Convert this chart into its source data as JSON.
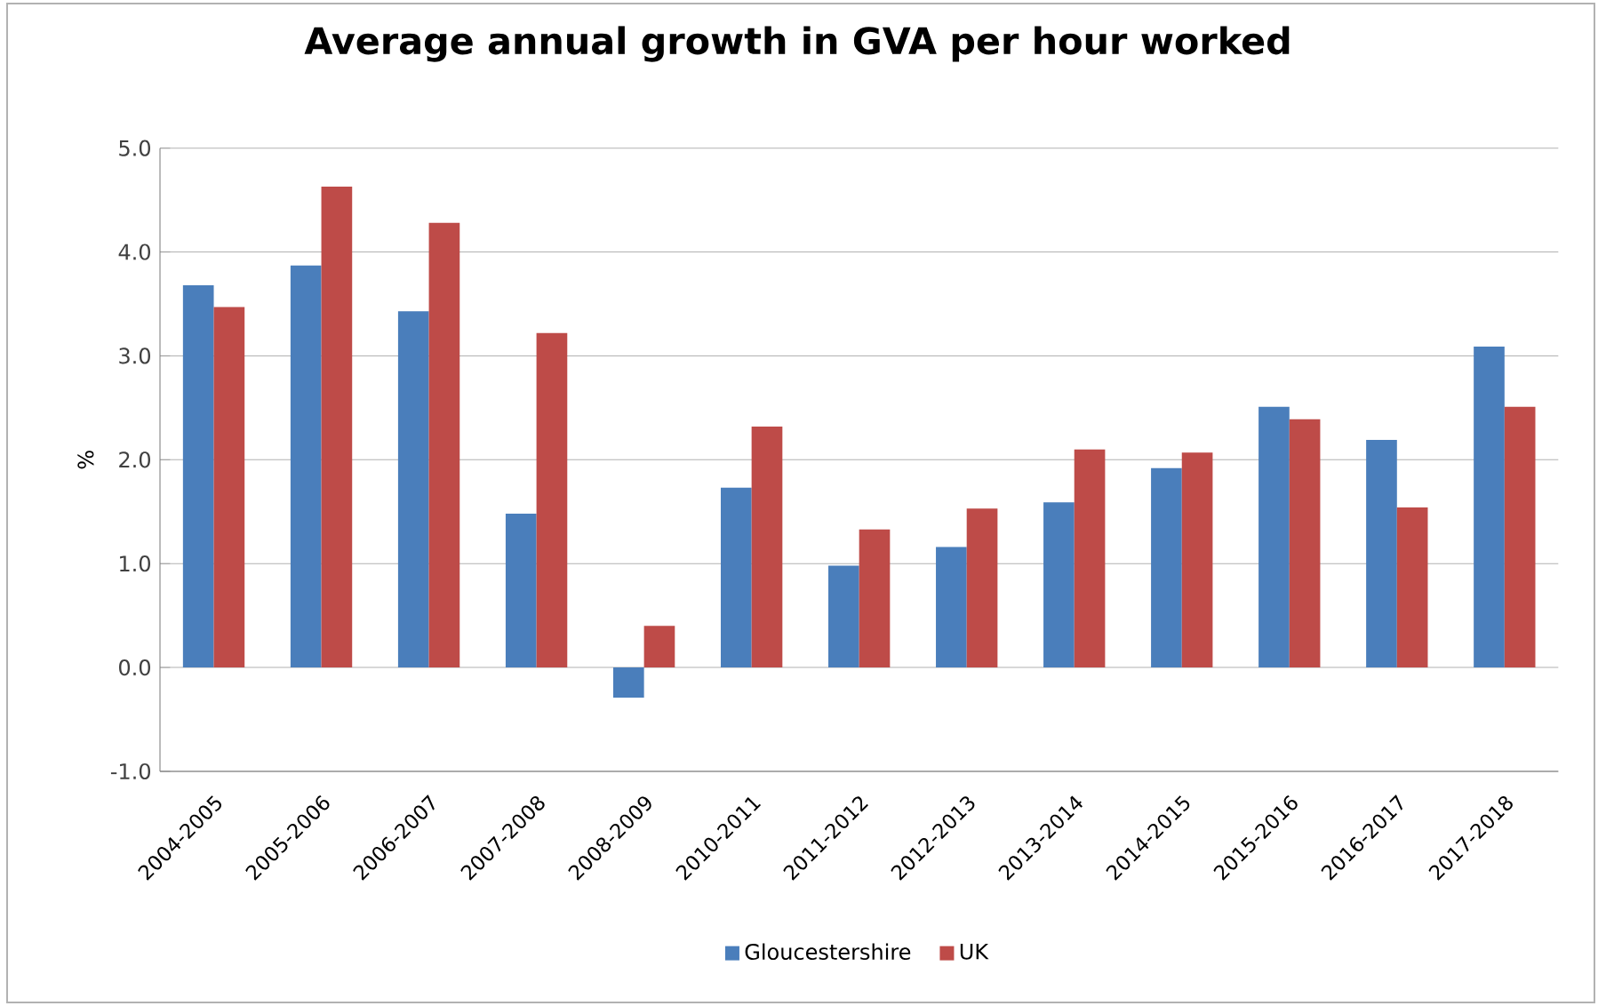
{
  "chart_data": {
    "type": "bar",
    "title": "Average annual growth in GVA per hour worked",
    "ylabel": "%",
    "categories": [
      "2004-2005",
      "2005-2006",
      "2006-2007",
      "2007-2008",
      "2008-2009",
      "2010-2011",
      "2011-2012",
      "2012-2013",
      "2013-2014",
      "2014-2015",
      "2015-2016",
      "2016-2017",
      "2017-2018"
    ],
    "series": [
      {
        "name": "Gloucestershire",
        "color": "#4a7ebb",
        "values": [
          3.68,
          3.87,
          3.43,
          1.48,
          -0.29,
          1.73,
          0.98,
          1.16,
          1.59,
          1.92,
          2.51,
          2.19,
          3.09
        ]
      },
      {
        "name": "UK",
        "color": "#be4b48",
        "values": [
          3.47,
          4.63,
          4.28,
          3.22,
          0.4,
          2.32,
          1.33,
          1.53,
          2.1,
          2.07,
          2.39,
          1.54,
          2.51
        ]
      }
    ],
    "ylim": [
      -1,
      5
    ],
    "yticks": [
      {
        "value": -1,
        "label": "-1.0"
      },
      {
        "value": 0,
        "label": "0.0"
      },
      {
        "value": 1,
        "label": "1.0"
      },
      {
        "value": 2,
        "label": "2.0"
      },
      {
        "value": 3,
        "label": "3.0"
      },
      {
        "value": 4,
        "label": "4.0"
      },
      {
        "value": 5,
        "label": "5.0"
      }
    ],
    "grid": "y",
    "legend": "bottom"
  }
}
